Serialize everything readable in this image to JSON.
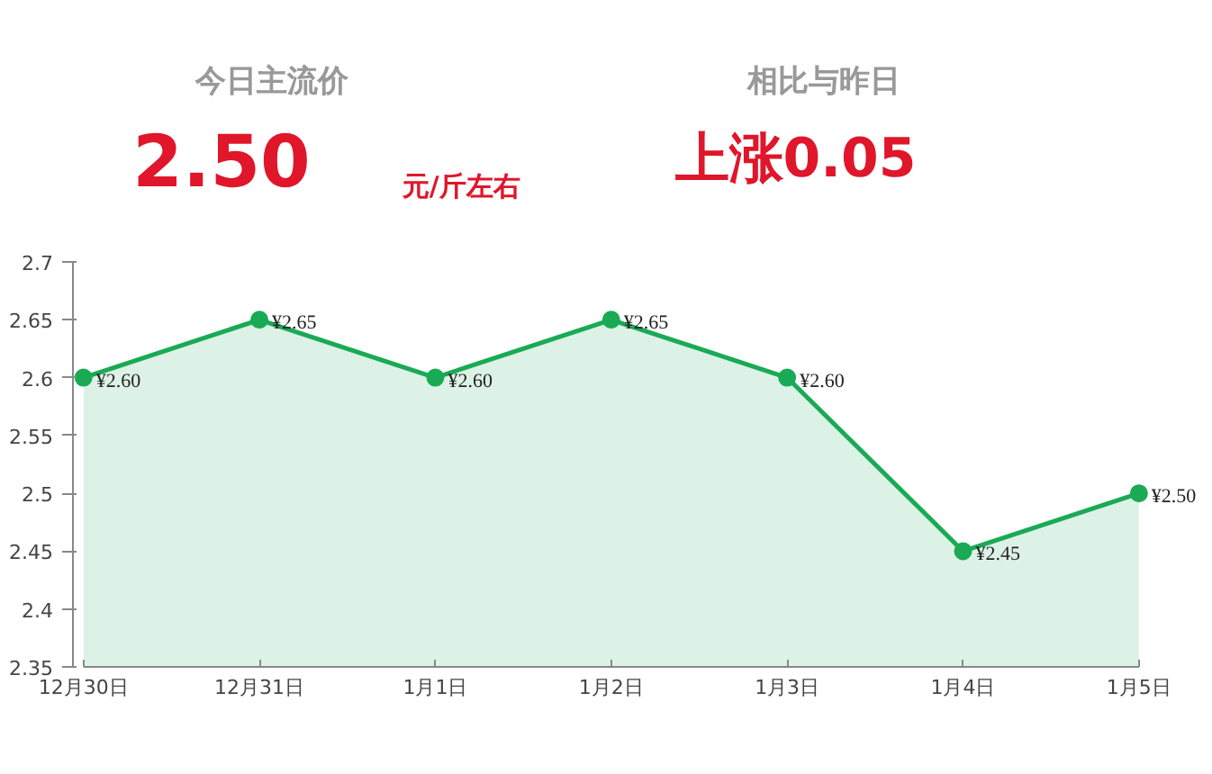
{
  "chart_data": {
    "type": "area",
    "categories": [
      "12月30日",
      "12月31日",
      "1月1日",
      "1月2日",
      "1月3日",
      "1月4日",
      "1月5日"
    ],
    "series": [
      {
        "color": "#1aaa55",
        "values": [
          2.6,
          2.65,
          2.6,
          2.65,
          2.6,
          2.45,
          2.5
        ],
        "value_labels": [
          "¥2.60",
          "¥2.65",
          "¥2.60",
          "¥2.65",
          "¥2.60",
          "¥2.45",
          "¥2.50"
        ]
      }
    ],
    "ylim": [
      2.35,
      2.7
    ],
    "yticks": [
      2.35,
      2.4,
      2.45,
      2.5,
      2.55,
      2.6,
      2.65,
      2.7
    ],
    "marker": "circle",
    "grid": false,
    "annotations": [
      "今日主流价",
      "2.50",
      "元/斤左右",
      "相比与昨日",
      "上涨0.05"
    ]
  }
}
